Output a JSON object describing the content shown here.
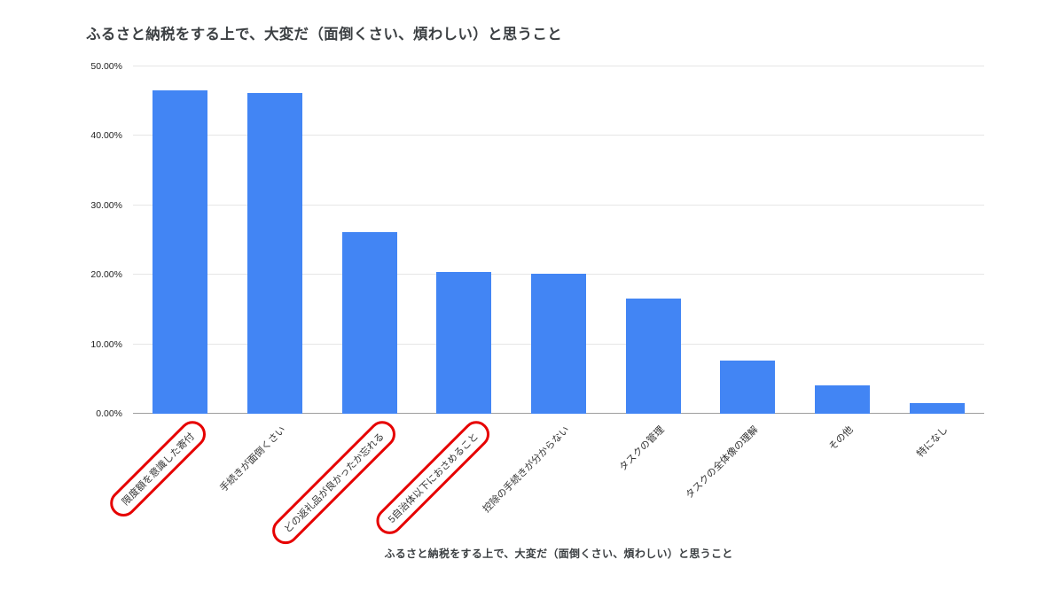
{
  "chart_data": {
    "type": "bar",
    "title": "ふるさと納税をする上で、大変だ（面倒くさい、煩わしい）と思うこと",
    "xlabel": "ふるさと納税をする上で、大変だ（面倒くさい、煩わしい）と思うこと",
    "ylabel": "",
    "categories": [
      "限度額を意識した寄付",
      "手続きが面倒くさい",
      "どの返礼品が良かったか忘れる",
      "5自治体以下におさめること",
      "控除の手続きが分からない",
      "タスクの管理",
      "タスクの全体像の理解",
      "その他",
      "特になし"
    ],
    "values": [
      46.5,
      46.2,
      26.2,
      20.4,
      20.2,
      16.6,
      7.7,
      4.1,
      1.5
    ],
    "ylim": [
      0,
      50
    ],
    "y_tick_values": [
      0,
      10,
      20,
      30,
      40,
      50
    ],
    "y_tick_labels": [
      "0.00%",
      "10.00%",
      "20.00%",
      "30.00%",
      "40.00%",
      "50.00%"
    ],
    "grid": true,
    "legend": "none",
    "bar_color": "#4285f4",
    "gridline_color": "#e6e6e6",
    "axis_line_color": "#9e9e9e",
    "annotations": {
      "red_circled_categories": [
        0,
        2,
        3
      ],
      "circle_color": "#e60000"
    }
  }
}
